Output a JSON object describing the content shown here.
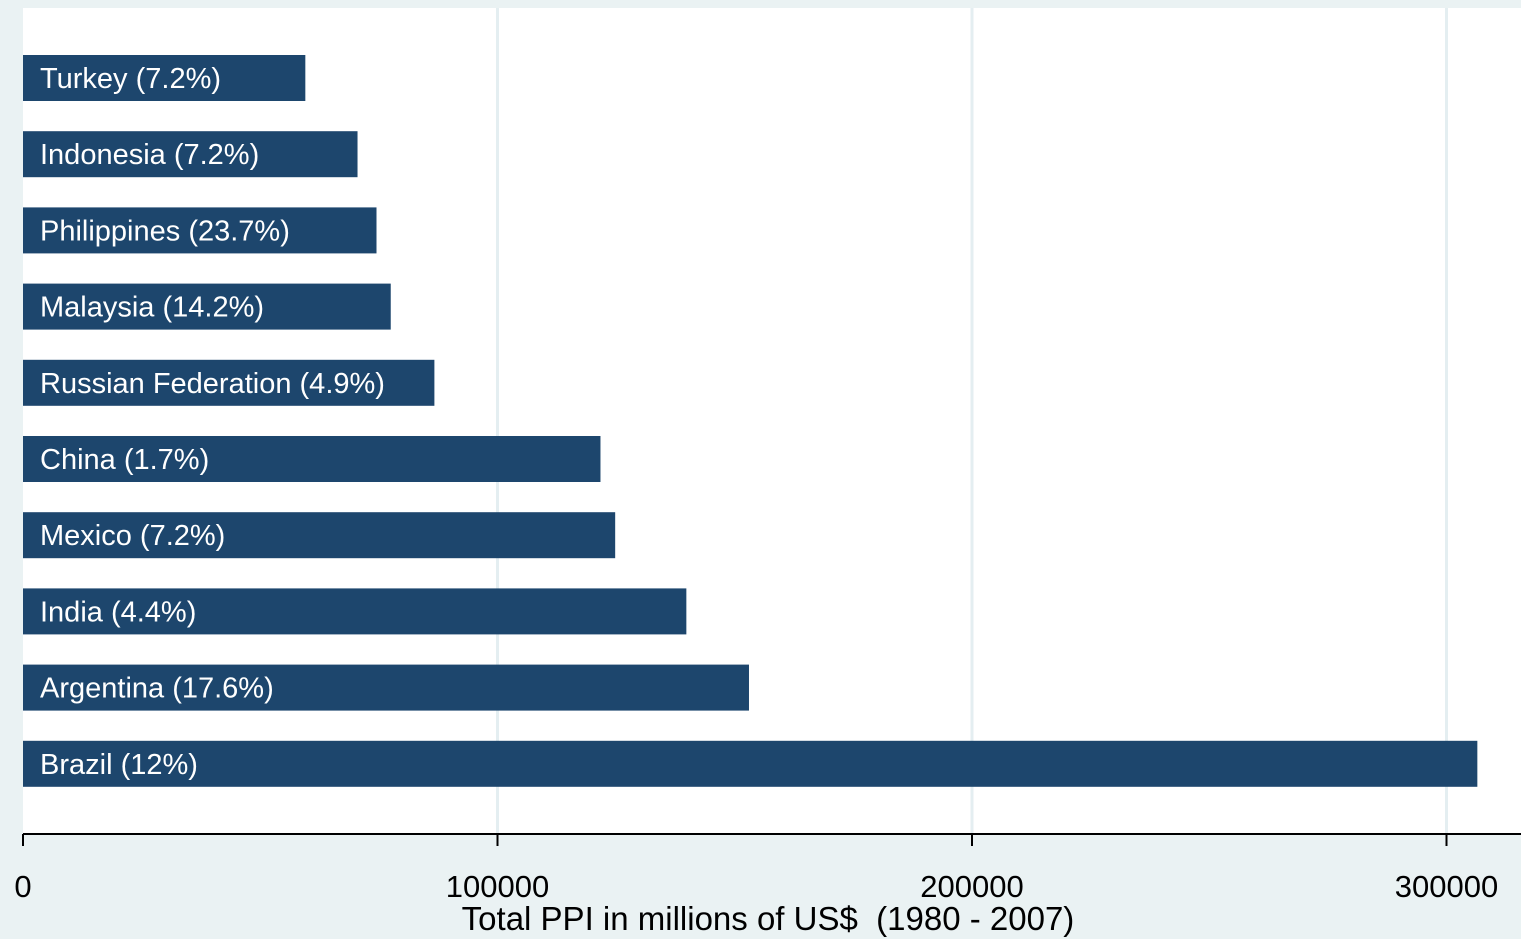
{
  "colors": {
    "outer_background": "#eaf2f3",
    "plot_background": "#ffffff",
    "gridline": "#e4eef1",
    "bar": "#1d466d",
    "bar_label": "#ffffff",
    "axis": "#000000"
  },
  "chart_data": {
    "type": "bar",
    "orientation": "horizontal",
    "title": "",
    "xlabel": "Total PPI in millions of US$  (1980 - 2007)",
    "ylabel": "",
    "xlim": [
      0,
      315000
    ],
    "xticks": [
      0,
      100000,
      200000,
      300000
    ],
    "tick_labels": [
      "0",
      "100000",
      "200000",
      "300000"
    ],
    "grid": true,
    "legend": "none",
    "categories": [
      "Turkey (7.2%)",
      "Indonesia (7.2%)",
      "Philippines (23.7%)",
      "Malaysia (14.2%)",
      "Russian Federation (4.9%)",
      "China (1.7%)",
      "Mexico (7.2%)",
      "India (4.4%)",
      "Argentina (17.6%)",
      "Brazil (12%)"
    ],
    "values": [
      59500,
      70500,
      74500,
      77500,
      86700,
      121700,
      124800,
      139800,
      153000,
      306500
    ]
  }
}
